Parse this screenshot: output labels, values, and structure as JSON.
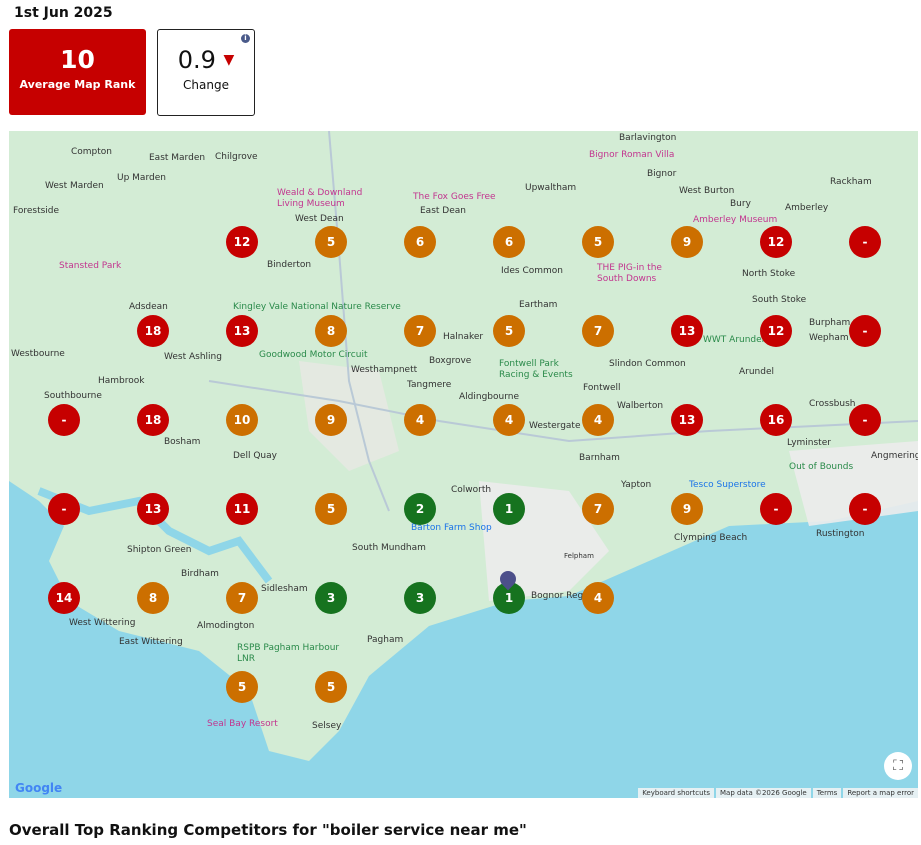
{
  "date": "1st Jun 2025",
  "average_rank": {
    "value": "10",
    "label": "Average Map Rank",
    "color": "#c60000"
  },
  "change": {
    "value": "0.9",
    "direction": "down",
    "arrow": "🡇",
    "label": "Change",
    "info": "i"
  },
  "map": {
    "places": [
      "Compton",
      "East Marden",
      "Chilgrove",
      "West Marden",
      "Up Marden",
      "Forestside",
      "West Dean",
      "East Dean",
      "Binderton",
      "Upwaltham",
      "Ides Common",
      "Eartham",
      "Adsdean",
      "Westbourne",
      "West Ashling",
      "Halnaker",
      "Boxgrove",
      "Tangmere",
      "Hambrook",
      "Southbourne",
      "Westhampnett",
      "Bosham",
      "Aldingbourne",
      "Westergate",
      "Fontwell",
      "Walberton",
      "Slindon Common",
      "Barnham",
      "Yapton",
      "Dell Quay",
      "Colworth",
      "South Mundham",
      "Shipton Green",
      "Birdham",
      "Sidlesham",
      "West Wittering",
      "East Wittering",
      "Almodington",
      "Pagham",
      "Selsey",
      "Rustington",
      "Lyminster",
      "Crossbush",
      "Arundel",
      "Burpham",
      "Wepham",
      "South Stoke",
      "North Stoke",
      "Amberley",
      "Bury",
      "Rackham",
      "West Burton",
      "Bignor",
      "Barlavington",
      "Angmering",
      "Felpham",
      "Clymping Beach",
      "Bognor Regis"
    ],
    "pois": [
      "Weald & Downland Living Museum",
      "The Fox Goes Free",
      "Stansted Park",
      "Kingley Vale National Nature Reserve",
      "Goodwood Motor Circuit",
      "Fontwell Park Racing & Events",
      "THE PIG-in the South Downs",
      "Bignor Roman Villa",
      "Amberley Museum",
      "WWT Arundel",
      "Tesco Superstore",
      "Out of Bounds",
      "RSPB Pagham Harbour LNR",
      "Seal Bay Resort",
      "Barton Farm Shop"
    ],
    "colors": {
      "red": "#c60000",
      "orange": "#cc6f00",
      "green": "#16731f",
      "land": "#d3ecd5",
      "sea": "#8fd6e8"
    },
    "grid": [
      [
        null,
        null,
        "12",
        "5",
        "6",
        "6",
        "5",
        "9",
        "12",
        "-"
      ],
      [
        null,
        "18",
        "13",
        "8",
        "7",
        "5",
        "7",
        "13",
        "12",
        "-"
      ],
      [
        "-",
        "18",
        "10",
        "9",
        "4",
        "4",
        "4",
        "13",
        "16",
        "-"
      ],
      [
        "-",
        "13",
        "11",
        "5",
        "2",
        "1",
        "7",
        "9",
        "-",
        "-"
      ],
      [
        "14",
        "8",
        "7",
        "3",
        "3",
        "1",
        "4",
        null,
        null,
        null
      ],
      [
        null,
        null,
        "5",
        "5",
        null,
        null,
        null,
        null,
        null,
        null
      ]
    ],
    "attribution": [
      "Keyboard shortcuts",
      "Map data ©2026 Google",
      "Terms",
      "Report a map error"
    ],
    "logo": "Google",
    "fullscreen_icon": "fullscreen-icon"
  },
  "competitors_heading": "Overall Top Ranking Competitors for \"boiler service near me\""
}
